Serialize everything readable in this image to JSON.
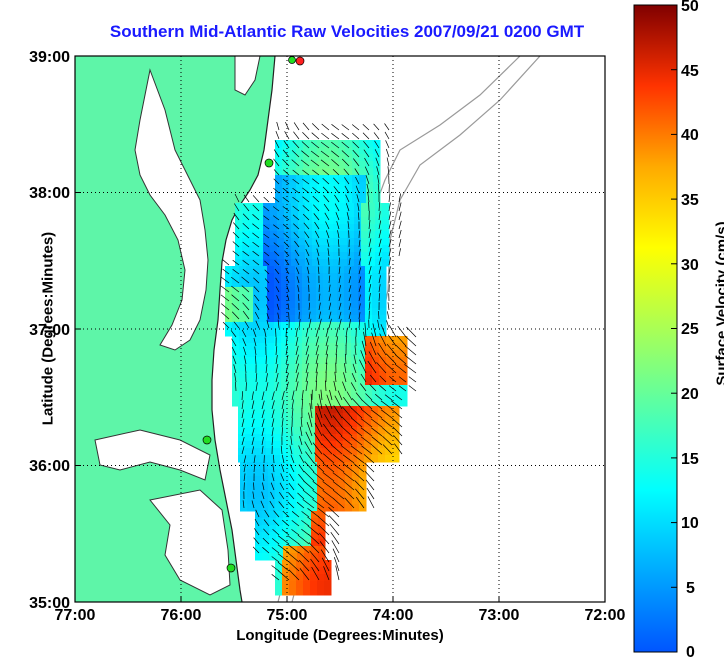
{
  "title": "Southern Mid-Atlantic Raw Velocities 2007/09/21 0200 GMT",
  "x_axis": {
    "label": "Longitude (Degrees:Minutes)",
    "ticks": [
      "77:00",
      "76:00",
      "75:00",
      "74:00",
      "73:00",
      "72:00"
    ]
  },
  "y_axis": {
    "label": "Latitude (Degrees:Minutes)",
    "ticks": [
      "39:00",
      "38:00",
      "37:00",
      "36:00",
      "35:00"
    ]
  },
  "colorbar": {
    "label": "Surface Velocity (cm/s)",
    "ticks": [
      "50",
      "45",
      "40",
      "35",
      "30",
      "25",
      "20",
      "15",
      "10",
      "5",
      "0"
    ],
    "min": 0,
    "max": 50
  },
  "colors": {
    "land": "#5ef5a8",
    "title": "#1a1aff",
    "vectors": "#000000",
    "bathymetry": "#9a9a9a",
    "station_green": "#22dd22",
    "station_red": "#ff2020"
  },
  "map": {
    "lon_range": [
      -77,
      -72
    ],
    "lat_range": [
      35,
      39
    ],
    "grid": "dotted"
  }
}
